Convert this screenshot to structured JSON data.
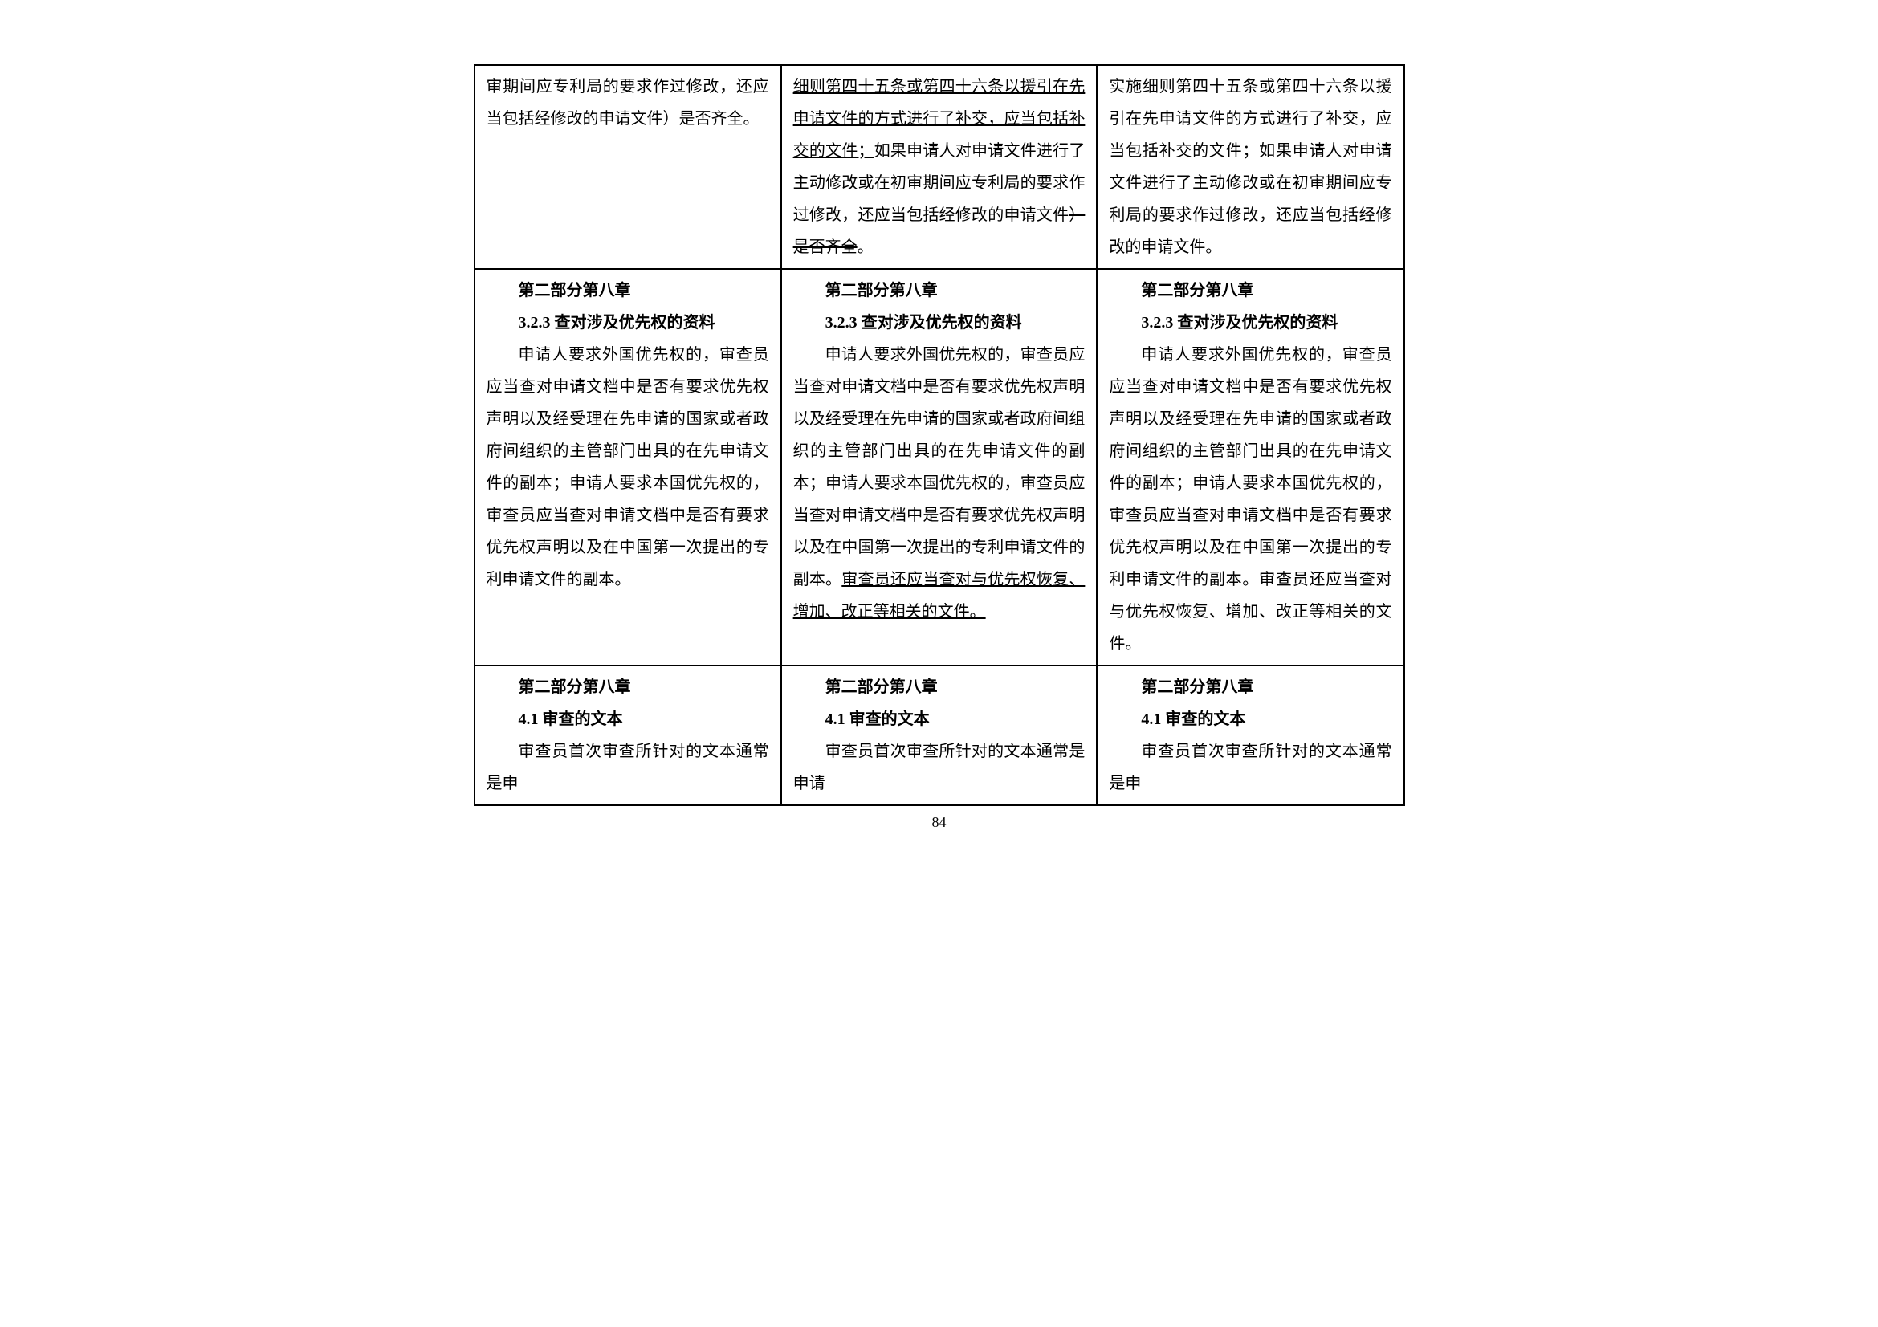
{
  "page_number": "84",
  "colors": {
    "text": "#000000",
    "background": "#ffffff",
    "border": "#000000"
  },
  "typography": {
    "body_fontsize_pt": 15,
    "head_fontsize_pt": 15,
    "line_height": 2.0
  },
  "rows": [
    {
      "left": {
        "segments": [
          {
            "text": "审期间应专利局的要求作过修改，还应当包括经修改的申请文件）是否齐全。"
          }
        ]
      },
      "mid": {
        "segments": [
          {
            "text": "细则第四十五条或第四十六条以援引在先申请文件的方式进行了补交，应当包括补交的文件；",
            "underline": true
          },
          {
            "text": "如果申请人对申请文件进行了主动修改或在初审期间应专利局的要求作过修改，还应当包括经修改的申请文件"
          },
          {
            "text": "）是否齐全",
            "strike": true
          },
          {
            "text": "。"
          }
        ]
      },
      "right": {
        "segments": [
          {
            "text": "实施细则第四十五条或第四十六条以援引在先申请文件的方式进行了补交，应当包括补交的文件；如果申请人对申请文件进行了主动修改或在初审期间应专利局的要求作过修改，还应当包括经修改的申请文件。"
          }
        ]
      }
    },
    {
      "left": {
        "head1": "第二部分第八章",
        "head2": "3.2.3 查对涉及优先权的资料",
        "segments": [
          {
            "text": "申请人要求外国优先权的，审查员应当查对申请文档中是否有要求优先权声明以及经受理在先申请的国家或者政府间组织的主管部门出具的在先申请文件的副本；申请人要求本国优先权的，审查员应当查对申请文档中是否有要求优先权声明以及在中国第一次提出的专利申请文件的副本。"
          }
        ]
      },
      "mid": {
        "head1": "第二部分第八章",
        "head2": "3.2.3 查对涉及优先权的资料",
        "segments": [
          {
            "text": "申请人要求外国优先权的，审查员应当查对申请文档中是否有要求优先权声明以及经受理在先申请的国家或者政府间组织的主管部门出具的在先申请文件的副本；申请人要求本国优先权的，审查员应当查对申请文档中是否有要求优先权声明以及在中国第一次提出的专利申请文件的副本。"
          },
          {
            "text": "审查员还应当查对与优先权恢复、增加、改正等相关的文件。",
            "underline": true
          }
        ]
      },
      "right": {
        "head1": "第二部分第八章",
        "head2": "3.2.3 查对涉及优先权的资料",
        "segments": [
          {
            "text": "申请人要求外国优先权的，审查员应当查对申请文档中是否有要求优先权声明以及经受理在先申请的国家或者政府间组织的主管部门出具的在先申请文件的副本；申请人要求本国优先权的，审查员应当查对申请文档中是否有要求优先权声明以及在中国第一次提出的专利申请文件的副本。审查员还应当查对与优先权恢复、增加、改正等相关的文件。"
          }
        ]
      }
    },
    {
      "left": {
        "head1": "第二部分第八章",
        "head2": "4.1 审查的文本",
        "segments": [
          {
            "text": "审查员首次审查所针对的文本通常是申"
          }
        ]
      },
      "mid": {
        "head1": "第二部分第八章",
        "head2": "4.1 审查的文本",
        "segments": [
          {
            "text": "审查员首次审查所针对的文本通常是申请"
          }
        ]
      },
      "right": {
        "head1": "第二部分第八章",
        "head2": "4.1 审查的文本",
        "segments": [
          {
            "text": "审查员首次审查所针对的文本通常是申"
          }
        ]
      }
    }
  ]
}
